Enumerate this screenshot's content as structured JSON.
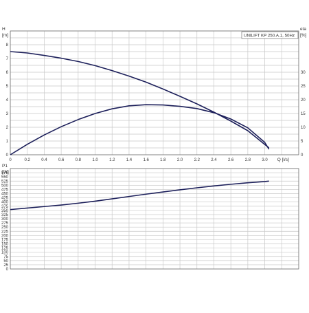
{
  "chart_data": [
    {
      "type": "line",
      "title": "UNILIFT KP 250.A.1, 50Hz",
      "xlabel": "Q [l/s]",
      "x_ticks": [
        "0",
        "0.2",
        "0.4",
        "0.6",
        "0.8",
        "1.0",
        "1.2",
        "1.4",
        "1.6",
        "1.8",
        "2.0",
        "2.2",
        "2.4",
        "2.6",
        "2.8",
        "3.0"
      ],
      "xlim": [
        0,
        3.4
      ],
      "y_axis_left": {
        "label": "H",
        "unit": "[m]",
        "lim": [
          0,
          9
        ],
        "ticks": [
          "0",
          "1",
          "2",
          "3",
          "4",
          "5",
          "6",
          "7",
          "8"
        ]
      },
      "y_axis_right": {
        "label": "eta",
        "unit": "[%]",
        "lim": [
          0,
          45
        ],
        "ticks": [
          "0",
          "5",
          "10",
          "15",
          "20",
          "25",
          "30"
        ]
      },
      "grid": true,
      "series": [
        {
          "name": "H",
          "axis": "left",
          "color": "#1c1f5a",
          "x": [
            0,
            0.2,
            0.4,
            0.6,
            0.8,
            1.0,
            1.2,
            1.4,
            1.6,
            1.8,
            2.0,
            2.2,
            2.4,
            2.6,
            2.8,
            3.0,
            3.05
          ],
          "y": [
            7.5,
            7.4,
            7.22,
            7.02,
            6.78,
            6.48,
            6.12,
            5.72,
            5.28,
            4.78,
            4.25,
            3.7,
            3.1,
            2.45,
            1.75,
            0.75,
            0.5
          ]
        },
        {
          "name": "eta",
          "axis": "right",
          "color": "#1c1f5a",
          "x": [
            0,
            0.2,
            0.4,
            0.6,
            0.8,
            1.0,
            1.2,
            1.4,
            1.6,
            1.8,
            2.0,
            2.2,
            2.4,
            2.6,
            2.8,
            3.0,
            3.05
          ],
          "y": [
            0,
            3.8,
            7.2,
            10.2,
            12.8,
            15.0,
            16.7,
            17.8,
            18.2,
            18.1,
            17.6,
            16.8,
            15.3,
            13.0,
            9.8,
            4.5,
            2.0
          ]
        }
      ]
    },
    {
      "type": "line",
      "xlim": [
        0,
        3.4
      ],
      "y_axis_left": {
        "label": "P1",
        "unit": "[W]",
        "lim": [
          0,
          600
        ],
        "ticks": [
          "0",
          "25",
          "50",
          "75",
          "100",
          "125",
          "150",
          "175",
          "200",
          "225",
          "250",
          "275",
          "300",
          "325",
          "350",
          "375",
          "400",
          "425",
          "450",
          "475",
          "500",
          "525",
          "550",
          "575"
        ]
      },
      "grid": true,
      "series": [
        {
          "name": "P1",
          "axis": "left",
          "color": "#1c1f5a",
          "x": [
            0,
            0.2,
            0.4,
            0.6,
            0.8,
            1.0,
            1.2,
            1.4,
            1.6,
            1.8,
            2.0,
            2.2,
            2.4,
            2.6,
            2.8,
            3.0,
            3.05
          ],
          "y": [
            355,
            364,
            373,
            382,
            393,
            405,
            419,
            433,
            447,
            460,
            473,
            485,
            496,
            506,
            515,
            522,
            525
          ]
        }
      ]
    }
  ]
}
